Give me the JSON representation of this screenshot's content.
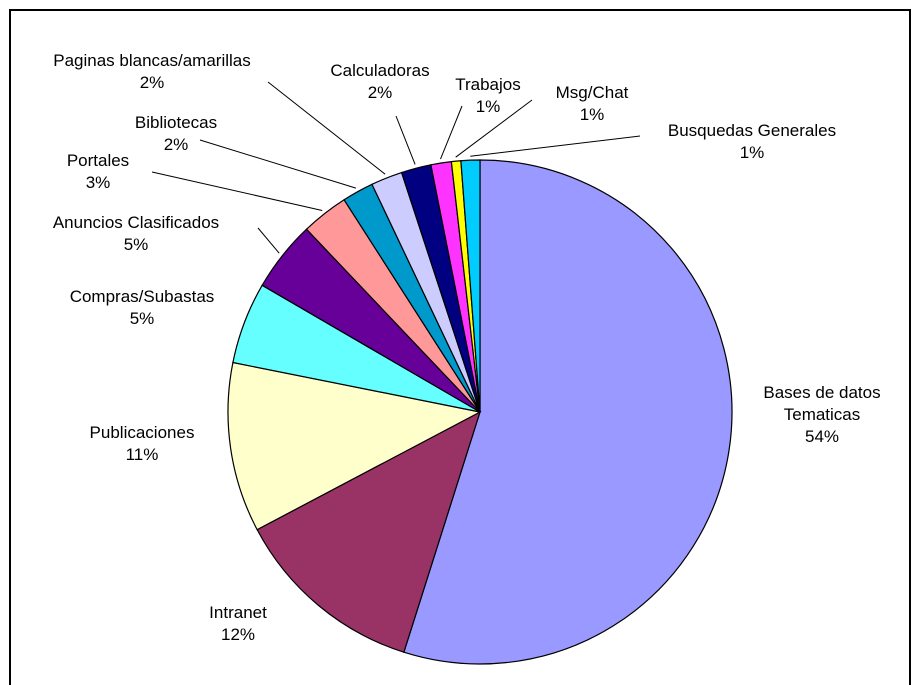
{
  "chart_data": {
    "type": "pie",
    "title": "",
    "start_angle_deg": 0,
    "direction": "clockwise",
    "slices": [
      {
        "label": "Bases de datos Tematicas",
        "label_lines": [
          "Bases de datos",
          "Tematicas"
        ],
        "display": "54%",
        "value": 54.5,
        "color": "#9999ff"
      },
      {
        "label": "Intranet",
        "label_lines": [
          "Intranet"
        ],
        "display": "12%",
        "value": 12.3,
        "color": "#993366"
      },
      {
        "label": "Publicaciones",
        "label_lines": [
          "Publicaciones"
        ],
        "display": "11%",
        "value": 10.8,
        "color": "#ffffcc"
      },
      {
        "label": "Compras/Subastas",
        "label_lines": [
          "Compras/Subastas"
        ],
        "display": "5%",
        "value": 5.2,
        "color": "#66ffff"
      },
      {
        "label": "Anuncios Clasificados",
        "label_lines": [
          "Anuncios Clasificados"
        ],
        "display": "5%",
        "value": 4.5,
        "color": "#660099"
      },
      {
        "label": "Portales",
        "label_lines": [
          "Portales"
        ],
        "display": "3%",
        "value": 3.0,
        "color": "#ff9999"
      },
      {
        "label": "Bibliotecas",
        "label_lines": [
          "Bibliotecas"
        ],
        "display": "2%",
        "value": 2.0,
        "color": "#0099cc"
      },
      {
        "label": "Paginas blancas/amarillas",
        "label_lines": [
          "Paginas blancas/amarillas"
        ],
        "display": "2%",
        "value": 2.0,
        "color": "#ccccff"
      },
      {
        "label": "Calculadoras",
        "label_lines": [
          "Calculadoras"
        ],
        "display": "2%",
        "value": 1.9,
        "color": "#000080"
      },
      {
        "label": "Trabajos",
        "label_lines": [
          "Trabajos"
        ],
        "display": "1%",
        "value": 1.3,
        "color": "#ff33ff"
      },
      {
        "label": "Msg/Chat",
        "label_lines": [
          "Msg/Chat"
        ],
        "display": "1%",
        "value": 0.6,
        "color": "#ffff00"
      },
      {
        "label": "Busquedas Generales",
        "label_lines": [
          "Busquedas Generales"
        ],
        "display": "1%",
        "value": 1.2,
        "color": "#00ccff"
      }
    ]
  }
}
